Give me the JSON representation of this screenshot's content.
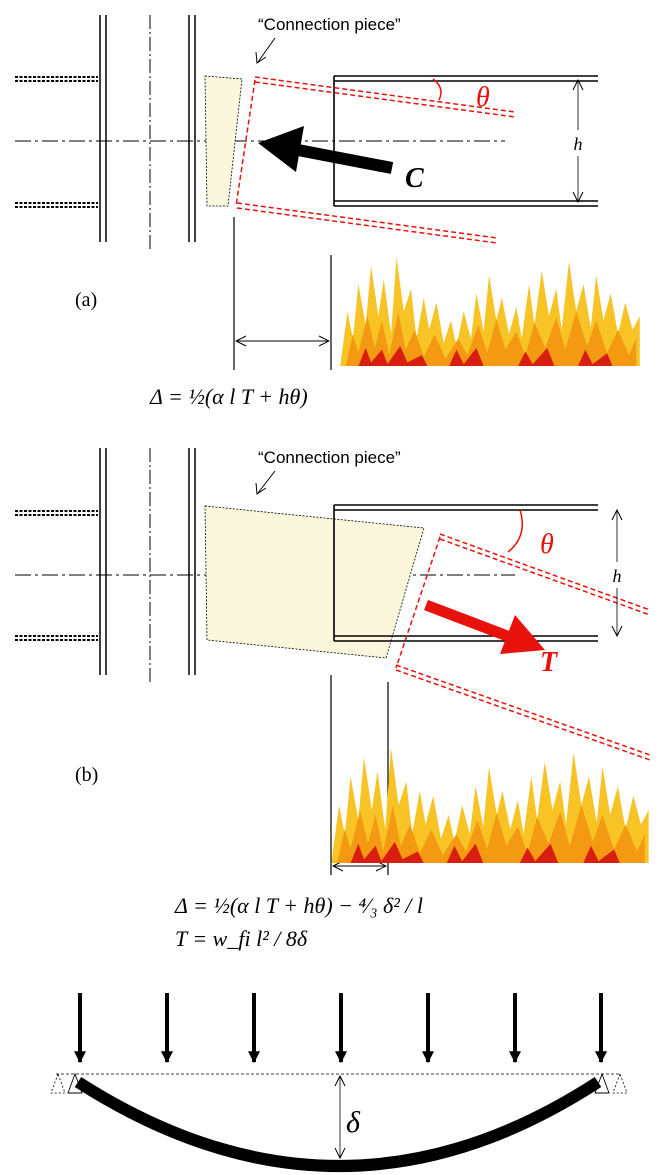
{
  "panel_a": {
    "connection_label": "“Connection piece”",
    "theta": "θ",
    "h": "h",
    "force": "C",
    "panel_label": "(a)",
    "formula": "Δ = ½(α l T + hθ)"
  },
  "panel_b": {
    "connection_label": "“Connection piece”",
    "theta": "θ",
    "h": "h",
    "force": "T",
    "panel_label": "(b)",
    "formula_1": "Δ = ½(α l T + hθ) − ⁴⁄₃ δ² / l",
    "formula_2": "T = w_fi l² / 8δ"
  },
  "panel_c": {
    "delta": "δ"
  },
  "colors": {
    "red": "#e8120c",
    "plate_fill": "#fbf7dc",
    "flame_yellow": "#f7c325",
    "flame_orange": "#f39a12",
    "flame_red": "#d81e10"
  }
}
